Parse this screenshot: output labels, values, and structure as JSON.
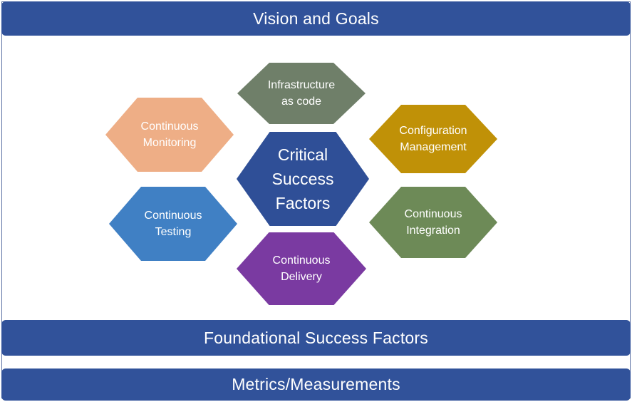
{
  "header": {
    "title": "Vision and Goals"
  },
  "diagram": {
    "center": {
      "label": "Critical\nSuccess\nFactors",
      "color": "#2f4f97"
    },
    "factors": [
      {
        "id": "infrastructure",
        "label": "Infrastructure\nas code",
        "color": "#6f7f69"
      },
      {
        "id": "configuration",
        "label": "Configuration\nManagement",
        "color": "#c09107"
      },
      {
        "id": "integration",
        "label": "Continuous\nIntegration",
        "color": "#6d8a57"
      },
      {
        "id": "delivery",
        "label": "Continuous\nDelivery",
        "color": "#7a3aa1"
      },
      {
        "id": "testing",
        "label": "Continuous\nTesting",
        "color": "#4080c4"
      },
      {
        "id": "monitoring",
        "label": "Continuous\nMonitoring",
        "color": "#eeae86"
      }
    ]
  },
  "footer": {
    "foundational": "Foundational Success Factors",
    "metrics": "Metrics/Measurements"
  }
}
